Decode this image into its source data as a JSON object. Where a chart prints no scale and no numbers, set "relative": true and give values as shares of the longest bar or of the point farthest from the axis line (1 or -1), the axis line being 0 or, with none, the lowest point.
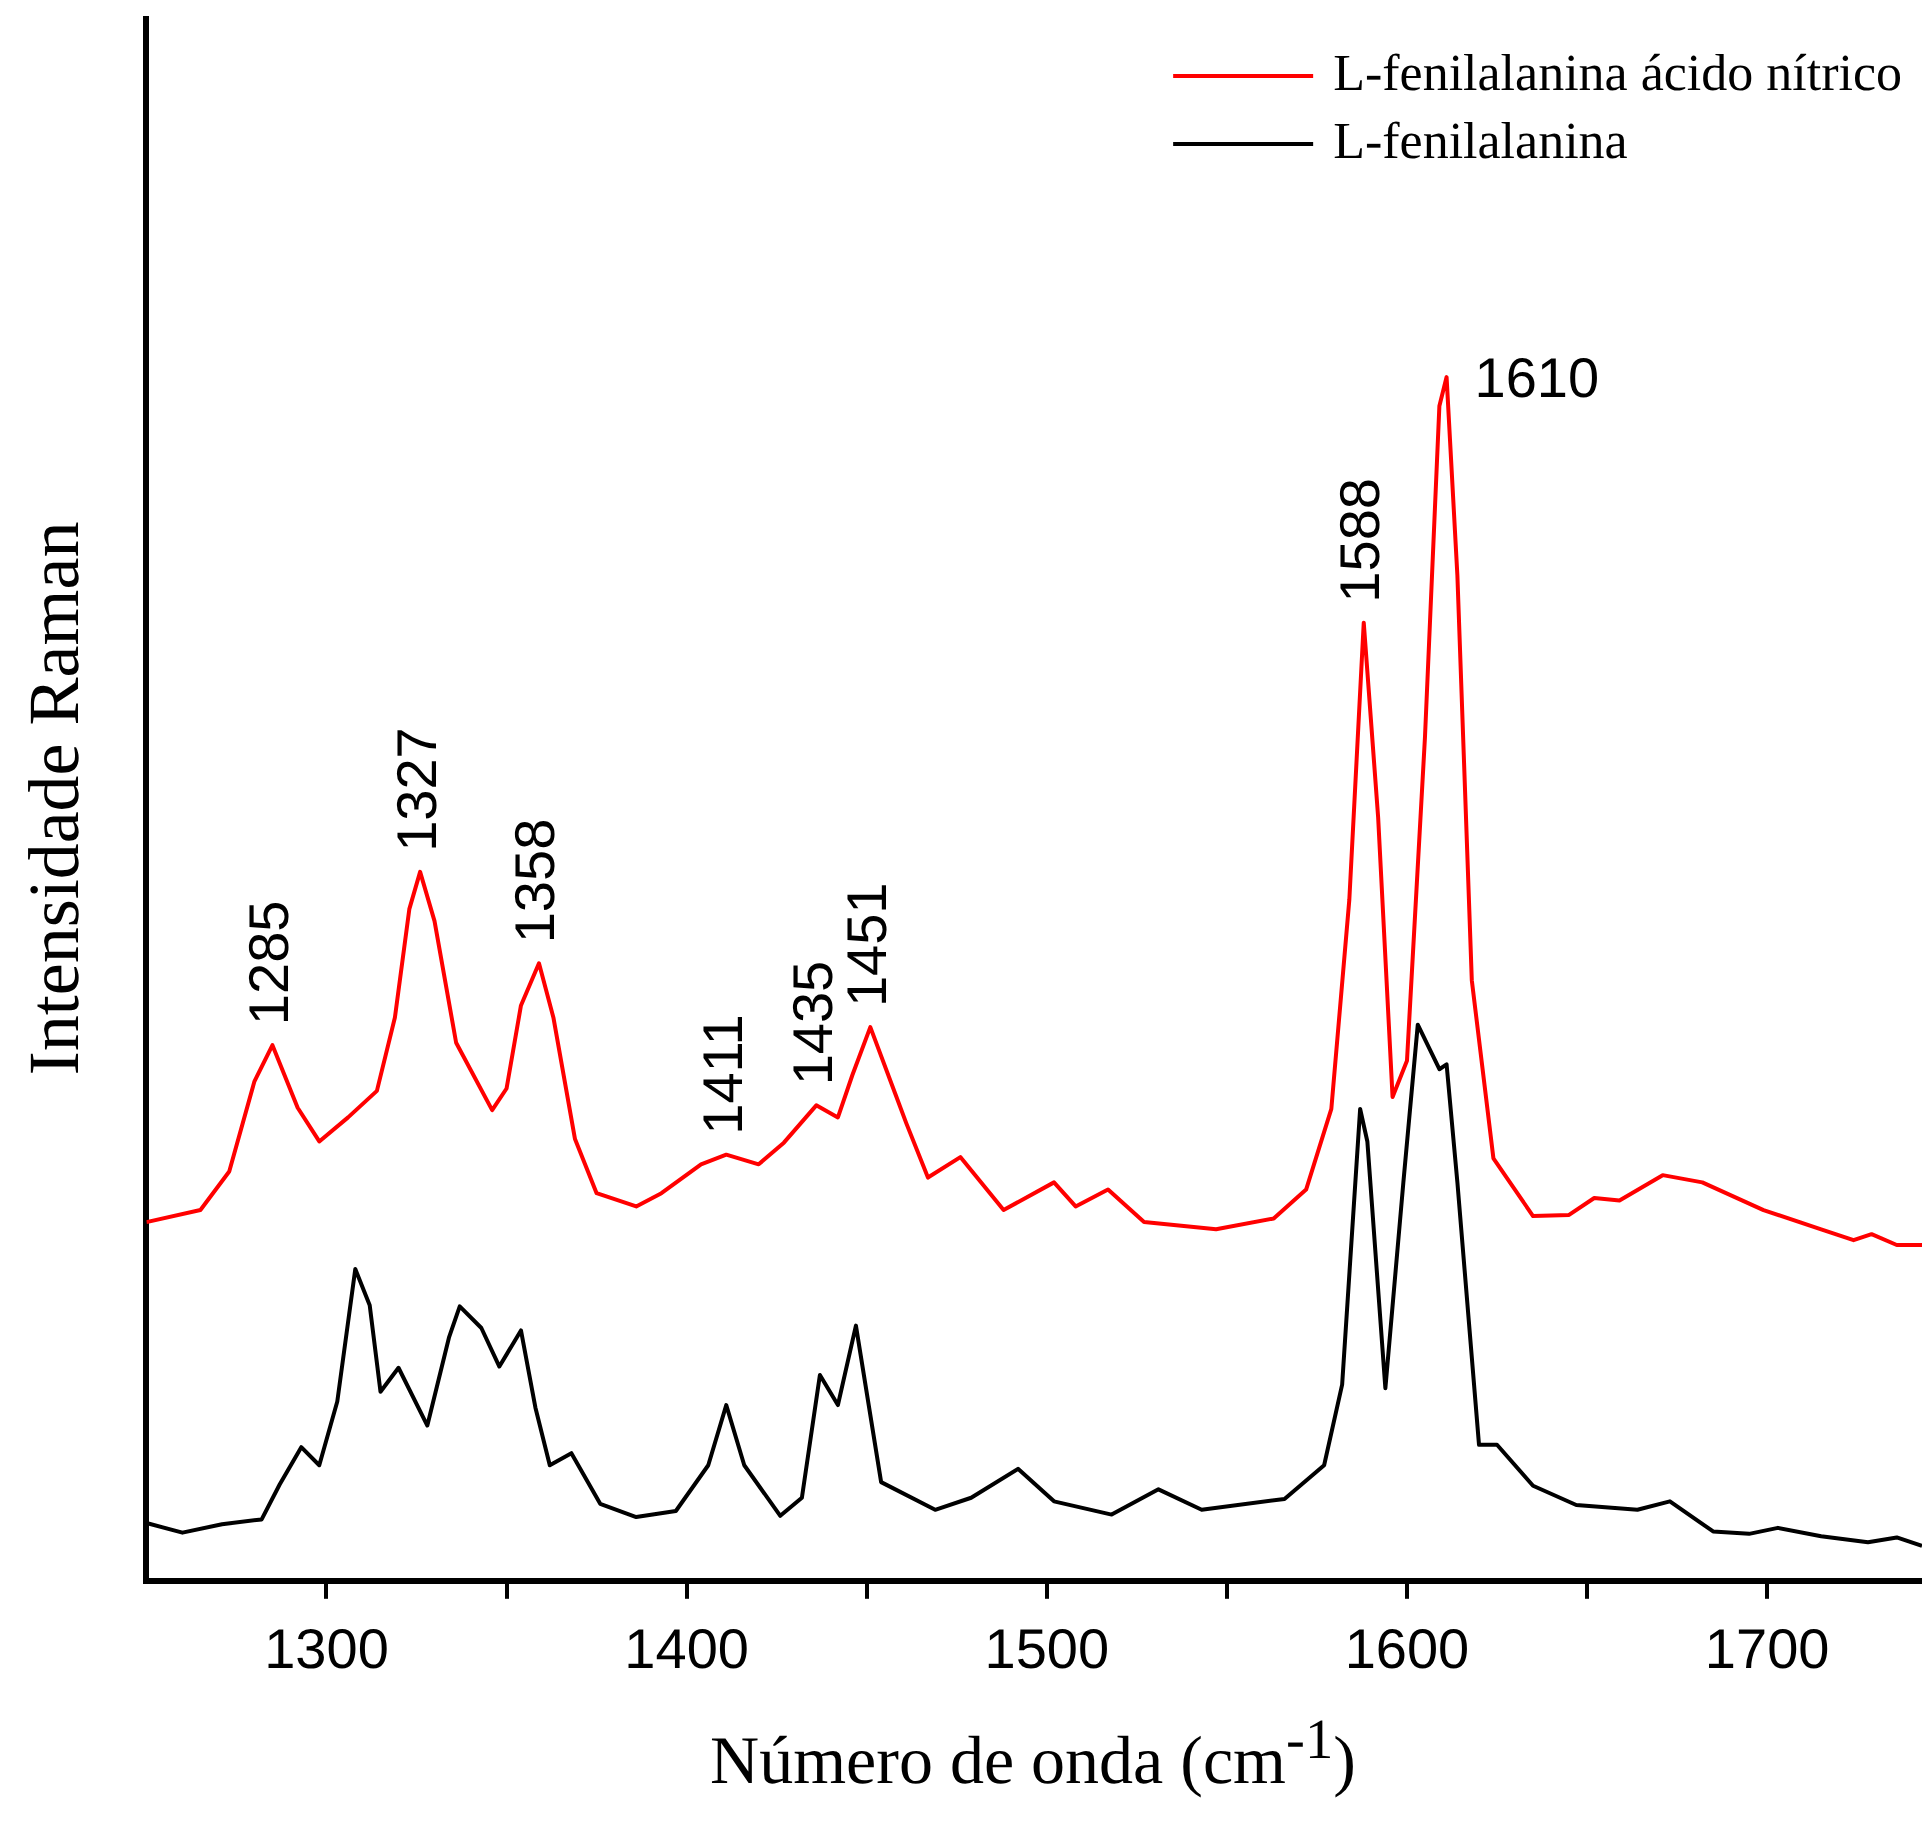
{
  "chart_data": {
    "type": "line",
    "relative": true,
    "xlabel": "Número de onda (cm$^{-1}$)",
    "ylabel": "Intensidade Raman",
    "legend": "top right",
    "xlim": [
      1250,
      1743
    ],
    "xticks": [
      1300,
      {
        "value": 1350,
        "label": null
      },
      1400,
      {
        "value": 1450,
        "label": null
      },
      1500,
      {
        "value": 1550,
        "label": null
      },
      1600,
      {
        "value": 1650,
        "label": null
      },
      1700
    ],
    "series": [
      {
        "name": "L-fenilalanina ácido nítrico",
        "color": "#ff0000",
        "x": [
          1250,
          1265,
          1273,
          1280,
          1285,
          1292,
          1298,
          1306,
          1314,
          1319,
          1323,
          1326,
          1330,
          1336,
          1346,
          1350,
          1354,
          1359,
          1363,
          1369,
          1375,
          1386,
          1393,
          1404,
          1411,
          1420,
          1427,
          1436,
          1442,
          1446,
          1451,
          1458,
          1461,
          1467,
          1476,
          1488,
          1502,
          1508,
          1517,
          1527,
          1547,
          1563,
          1572,
          1579,
          1584,
          1588,
          1592,
          1596,
          1600,
          1605,
          1609,
          1611,
          1614,
          1618,
          1624,
          1635,
          1645,
          1652,
          1659,
          1671,
          1682,
          1699,
          1715,
          1724,
          1729,
          1736,
          1743
        ],
        "values": [
          0.298,
          0.308,
          0.34,
          0.415,
          0.445,
          0.393,
          0.365,
          0.385,
          0.407,
          0.468,
          0.558,
          0.589,
          0.548,
          0.447,
          0.391,
          0.409,
          0.478,
          0.513,
          0.468,
          0.367,
          0.322,
          0.311,
          0.322,
          0.346,
          0.354,
          0.346,
          0.364,
          0.395,
          0.385,
          0.42,
          0.46,
          0.404,
          0.38,
          0.335,
          0.352,
          0.308,
          0.331,
          0.311,
          0.325,
          0.298,
          0.292,
          0.301,
          0.325,
          0.392,
          0.566,
          0.796,
          0.634,
          0.402,
          0.432,
          0.701,
          0.976,
          1.0,
          0.835,
          0.499,
          0.351,
          0.303,
          0.304,
          0.318,
          0.316,
          0.337,
          0.331,
          0.308,
          0.292,
          0.283,
          0.288,
          0.279,
          0.279
        ]
      },
      {
        "name": "L-fenilalanina",
        "color": "#000000",
        "x": [
          1250,
          1260,
          1271,
          1282,
          1287,
          1293,
          1298,
          1303,
          1308,
          1312,
          1315,
          1320,
          1328,
          1334,
          1337,
          1343,
          1348,
          1354,
          1358,
          1362,
          1368,
          1376,
          1386,
          1397,
          1406,
          1411,
          1416,
          1426,
          1432,
          1437,
          1442,
          1447,
          1454,
          1469,
          1479,
          1492,
          1502,
          1518,
          1531,
          1543,
          1566,
          1577,
          1582,
          1587,
          1589,
          1594,
          1599,
          1603,
          1609,
          1611,
          1614,
          1620,
          1625,
          1635,
          1647,
          1664,
          1673,
          1685,
          1695,
          1703,
          1715,
          1728,
          1736,
          1743
        ],
        "values": [
          0.048,
          0.04,
          0.047,
          0.051,
          0.08,
          0.111,
          0.096,
          0.149,
          0.259,
          0.229,
          0.157,
          0.177,
          0.129,
          0.202,
          0.228,
          0.21,
          0.178,
          0.208,
          0.144,
          0.096,
          0.106,
          0.064,
          0.053,
          0.058,
          0.096,
          0.146,
          0.096,
          0.054,
          0.069,
          0.171,
          0.146,
          0.212,
          0.082,
          0.059,
          0.069,
          0.093,
          0.066,
          0.055,
          0.076,
          0.059,
          0.068,
          0.096,
          0.163,
          0.392,
          0.365,
          0.16,
          0.331,
          0.462,
          0.425,
          0.429,
          0.331,
          0.113,
          0.113,
          0.079,
          0.063,
          0.059,
          0.066,
          0.041,
          0.039,
          0.044,
          0.037,
          0.032,
          0.036,
          0.029
        ]
      }
    ],
    "annotations": [
      {
        "text": "1285",
        "x": 1285,
        "y": 0.445
      },
      {
        "text": "1327",
        "x": 1326,
        "y": 0.589
      },
      {
        "text": "1358",
        "x": 1359,
        "y": 0.513
      },
      {
        "text": "1411",
        "x": 1411,
        "y": 0.354
      },
      {
        "text": "1435",
        "x": 1436,
        "y": 0.395
      },
      {
        "text": "1451",
        "x": 1451,
        "y": 0.46
      },
      {
        "text": "1588",
        "x": 1588,
        "y": 0.796
      },
      {
        "text": "1610",
        "x": 1611,
        "y": 1.0
      }
    ]
  }
}
